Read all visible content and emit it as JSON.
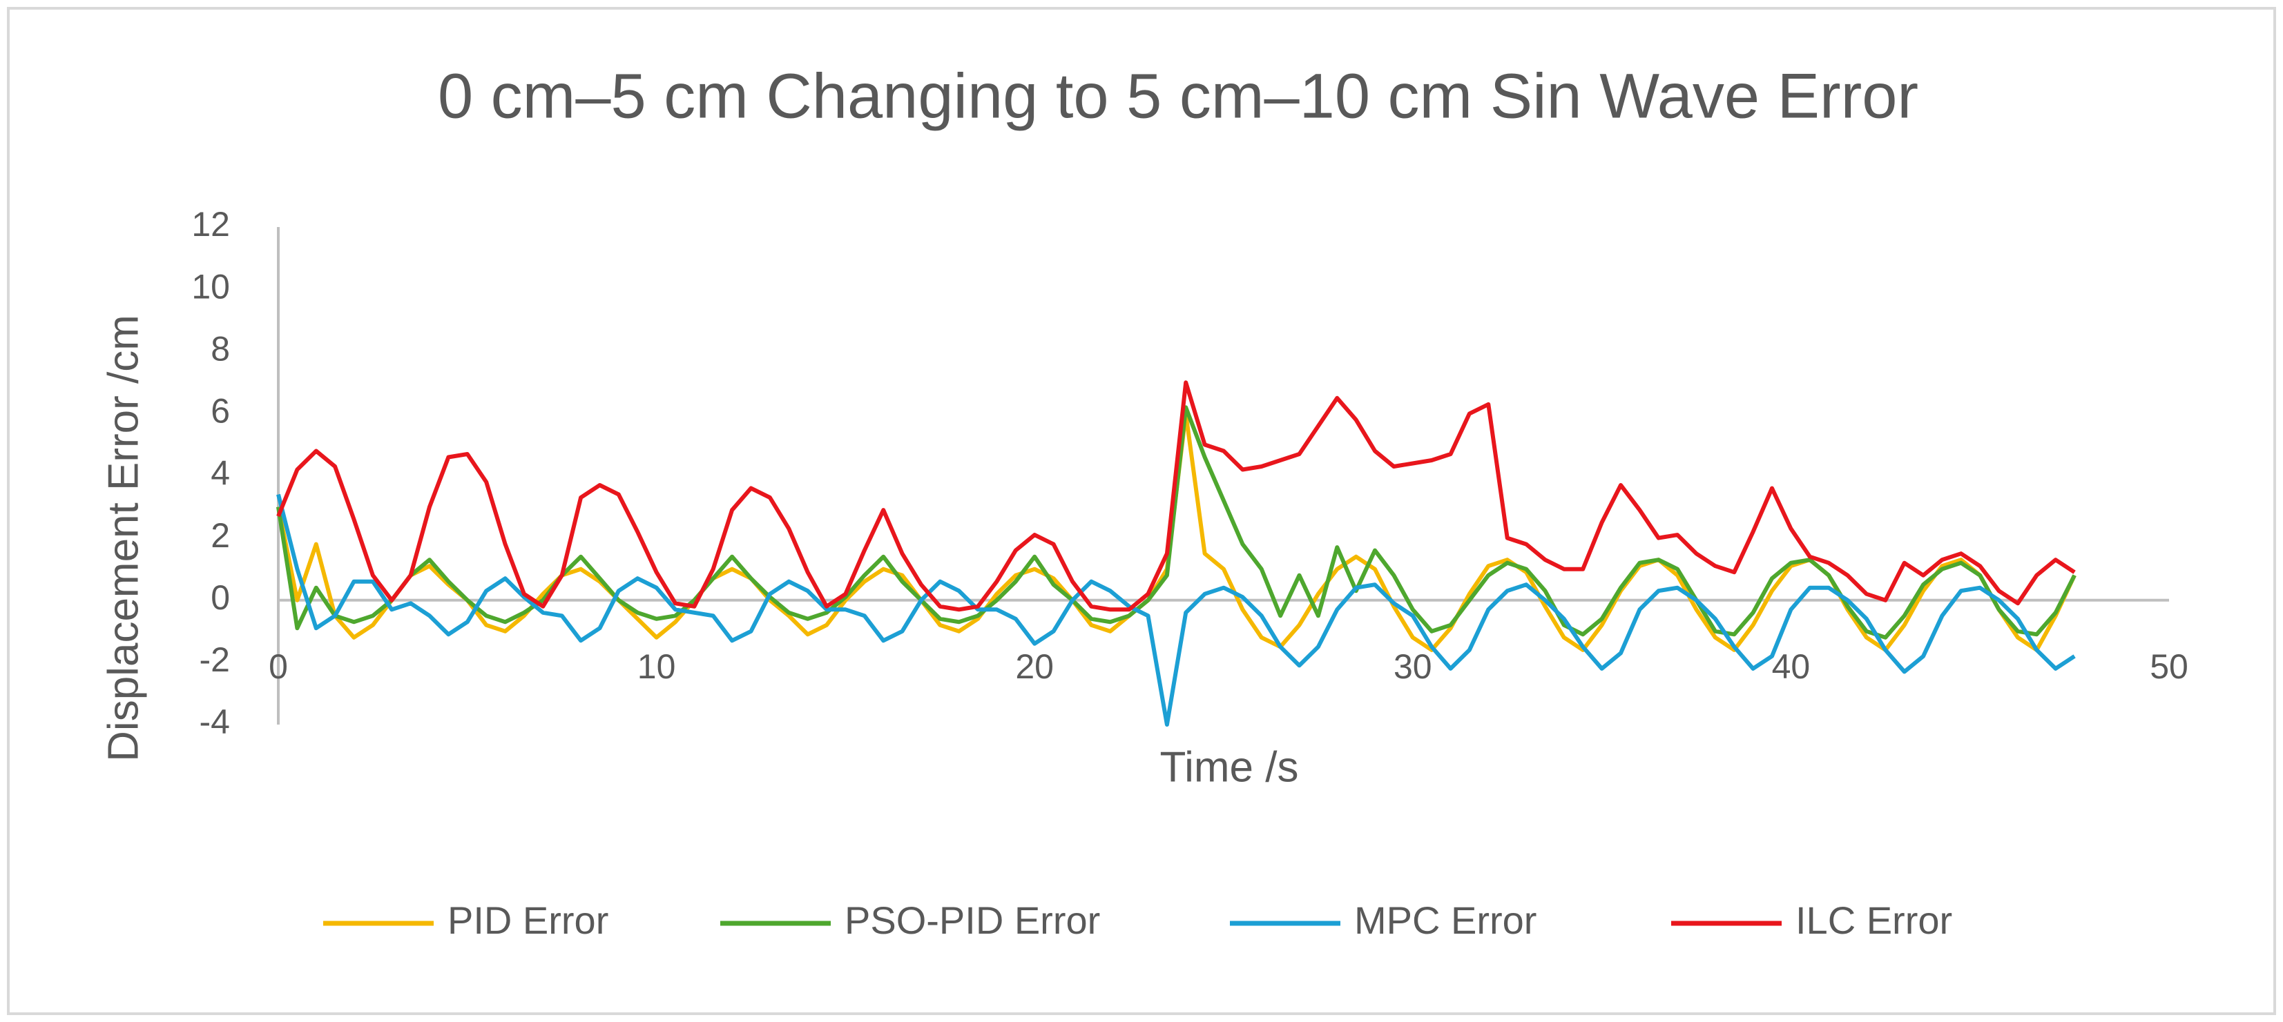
{
  "chart_data": {
    "type": "line",
    "title": "0 cm–5 cm Changing to 5 cm–10 cm Sin Wave Error",
    "x_label": "Time /s",
    "y_label": "Displacement Error /cm",
    "x": [
      0,
      0.5,
      1,
      1.5,
      2,
      2.5,
      3,
      3.5,
      4,
      4.5,
      5,
      5.5,
      6,
      6.5,
      7,
      7.5,
      8,
      8.5,
      9,
      9.5,
      10,
      10.5,
      11,
      11.5,
      12,
      12.5,
      13,
      13.5,
      14,
      14.5,
      15,
      15.5,
      16,
      16.5,
      17,
      17.5,
      18,
      18.5,
      19,
      19.5,
      20,
      20.5,
      21,
      21.5,
      22,
      22.5,
      23,
      23.5,
      24,
      24.5,
      25,
      25.5,
      26,
      26.5,
      27,
      27.5,
      28,
      28.5,
      29,
      29.5,
      30,
      30.5,
      31,
      31.5,
      32,
      32.5,
      33,
      33.5,
      34,
      34.5,
      35,
      35.5,
      36,
      36.5,
      37,
      37.5,
      38,
      38.5,
      39,
      39.5,
      40,
      40.5,
      41,
      41.5,
      42,
      42.5,
      43,
      43.5,
      44,
      44.5,
      45,
      45.5,
      46,
      46.5,
      47,
      47.5
    ],
    "series": [
      {
        "name": "PID Error",
        "color": "#f5b800",
        "values": [
          3,
          0,
          1.8,
          -0.5,
          -1.2,
          -0.8,
          0,
          0.8,
          1.1,
          0.5,
          0,
          -0.8,
          -1,
          -0.5,
          0.2,
          0.8,
          1,
          0.6,
          0,
          -0.6,
          -1.2,
          -0.7,
          0,
          0.7,
          1,
          0.7,
          0,
          -0.5,
          -1.1,
          -0.8,
          0,
          0.6,
          1,
          0.8,
          0,
          -0.8,
          -1,
          -0.6,
          0.2,
          0.8,
          1,
          0.7,
          0,
          -0.8,
          -1,
          -0.5,
          0,
          1,
          6,
          1.5,
          1,
          -0.3,
          -1.2,
          -1.5,
          -0.8,
          0.2,
          1,
          1.4,
          1,
          -0.2,
          -1.2,
          -1.6,
          -0.9,
          0.2,
          1.1,
          1.3,
          0.9,
          -0.2,
          -1.2,
          -1.6,
          -0.8,
          0.3,
          1.1,
          1.3,
          0.8,
          -0.3,
          -1.2,
          -1.6,
          -0.8,
          0.3,
          1.1,
          1.3,
          0.8,
          -0.3,
          -1.2,
          -1.6,
          -0.8,
          0.3,
          1.1,
          1.3,
          0.8,
          -0.3,
          -1.2,
          -1.6,
          -0.5,
          0.8
        ]
      },
      {
        "name": "PSO-PID Error",
        "color": "#4ea72e",
        "values": [
          3,
          -0.9,
          0.4,
          -0.5,
          -0.7,
          -0.5,
          0,
          0.8,
          1.3,
          0.6,
          0,
          -0.5,
          -0.7,
          -0.4,
          0,
          0.8,
          1.4,
          0.7,
          0,
          -0.4,
          -0.6,
          -0.5,
          0,
          0.7,
          1.4,
          0.7,
          0.1,
          -0.4,
          -0.6,
          -0.4,
          0.1,
          0.8,
          1.4,
          0.6,
          0,
          -0.6,
          -0.7,
          -0.5,
          0,
          0.6,
          1.4,
          0.5,
          0,
          -0.6,
          -0.7,
          -0.5,
          0,
          0.8,
          6.2,
          4.6,
          3.2,
          1.8,
          1,
          -0.5,
          0.8,
          -0.5,
          1.7,
          0.3,
          1.6,
          0.8,
          -0.3,
          -1,
          -0.8,
          0,
          0.8,
          1.2,
          1,
          0.3,
          -0.8,
          -1.1,
          -0.6,
          0.4,
          1.2,
          1.3,
          1,
          0,
          -1,
          -1.1,
          -0.4,
          0.7,
          1.2,
          1.3,
          0.8,
          -0.2,
          -1,
          -1.2,
          -0.5,
          0.5,
          1,
          1.2,
          0.8,
          -0.3,
          -1,
          -1.1,
          -0.4,
          0.8
        ]
      },
      {
        "name": "MPC Error",
        "color": "#1c9fd4",
        "values": [
          3.4,
          1,
          -0.9,
          -0.5,
          0.6,
          0.6,
          -0.3,
          -0.1,
          -0.5,
          -1.1,
          -0.7,
          0.3,
          0.7,
          0.1,
          -0.4,
          -0.5,
          -1.3,
          -0.9,
          0.3,
          0.7,
          0.4,
          -0.3,
          -0.4,
          -0.5,
          -1.3,
          -1,
          0.2,
          0.6,
          0.3,
          -0.3,
          -0.3,
          -0.5,
          -1.3,
          -1,
          0,
          0.6,
          0.3,
          -0.3,
          -0.3,
          -0.6,
          -1.4,
          -1,
          0,
          0.6,
          0.3,
          -0.2,
          -0.5,
          -4,
          -0.4,
          0.2,
          0.4,
          0.1,
          -0.5,
          -1.5,
          -2.1,
          -1.5,
          -0.3,
          0.4,
          0.5,
          -0.1,
          -0.5,
          -1.5,
          -2.2,
          -1.6,
          -0.3,
          0.3,
          0.5,
          0,
          -0.6,
          -1.5,
          -2.2,
          -1.7,
          -0.3,
          0.3,
          0.4,
          0,
          -0.6,
          -1.5,
          -2.2,
          -1.8,
          -0.3,
          0.4,
          0.4,
          0,
          -0.6,
          -1.6,
          -2.3,
          -1.8,
          -0.5,
          0.3,
          0.4,
          0,
          -0.6,
          -1.6,
          -2.2,
          -1.8
        ]
      },
      {
        "name": "ILC Error",
        "color": "#e8161c",
        "values": [
          2.7,
          4.2,
          4.8,
          4.3,
          2.6,
          0.8,
          0,
          0.8,
          3,
          4.6,
          4.7,
          3.8,
          1.8,
          0.2,
          -0.2,
          0.8,
          3.3,
          3.7,
          3.4,
          2.2,
          0.9,
          -0.1,
          -0.2,
          1,
          2.9,
          3.6,
          3.3,
          2.3,
          0.9,
          -0.2,
          0.2,
          1.6,
          2.9,
          1.5,
          0.5,
          -0.2,
          -0.3,
          -0.2,
          0.6,
          1.6,
          2.1,
          1.8,
          0.6,
          -0.2,
          -0.3,
          -0.3,
          0.2,
          1.5,
          7,
          5,
          4.8,
          4.2,
          4.3,
          4.5,
          4.7,
          5.6,
          6.5,
          5.8,
          4.8,
          4.3,
          4.4,
          4.5,
          4.7,
          6,
          6.3,
          2,
          1.8,
          1.3,
          1,
          1,
          2.5,
          3.7,
          2.9,
          2,
          2.1,
          1.5,
          1.1,
          0.9,
          2.2,
          3.6,
          2.3,
          1.4,
          1.2,
          0.8,
          0.2,
          0,
          1.2,
          0.8,
          1.3,
          1.5,
          1.1,
          0.3,
          -0.1,
          0.8,
          1.3,
          0.9
        ]
      }
    ],
    "xlim": [
      0,
      50
    ],
    "xticks": [
      0,
      10,
      20,
      30,
      40,
      50
    ],
    "ylim": [
      -4,
      12
    ],
    "yticks": [
      -4,
      -2,
      0,
      2,
      4,
      6,
      8,
      10,
      12
    ],
    "legend": "bottom"
  }
}
